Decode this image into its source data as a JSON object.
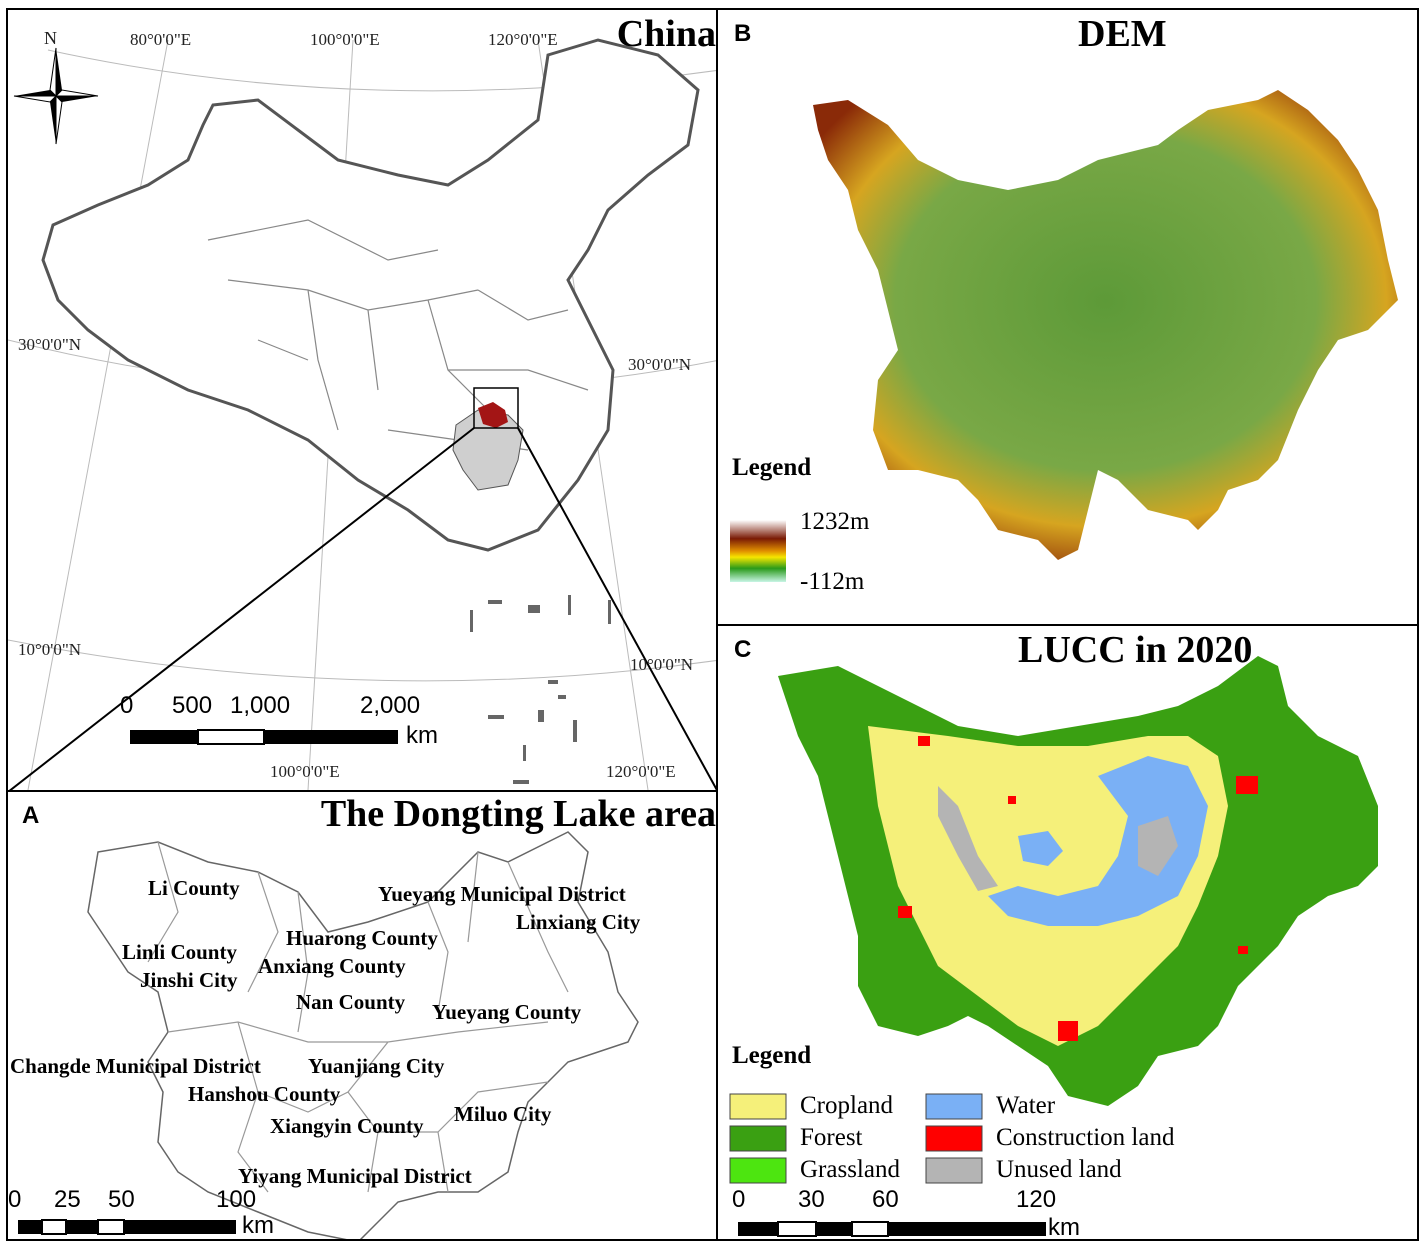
{
  "panel_china": {
    "title": "China",
    "north": "N",
    "coords": {
      "top_80E": "80°0'0\"E",
      "top_100E": "100°0'0\"E",
      "top_120E": "120°0'0\"E",
      "left_30N": "30°0'0\"N",
      "right_30N": "30°0'0\"N",
      "left_10N": "10°0'0\"N",
      "right_10N": "10°0'0\"N",
      "bottom_100E": "100°0'0\"E",
      "bottom_120E": "120°0'0\"E"
    },
    "scale": {
      "ticks": [
        "0",
        "500",
        "1,000",
        "2,000"
      ],
      "unit": "km"
    }
  },
  "panel_a": {
    "letter": "A",
    "title": "The Dongting Lake area",
    "counties": [
      "Li County",
      "Yueyang Municipal District",
      "Linxiang City",
      "Huarong County",
      "Linli County",
      "Anxiang County",
      "Jinshi City",
      "Nan County",
      "Yueyang County",
      "Changde Municipal District",
      "Yuanjiang City",
      "Hanshou County",
      "Miluo City",
      "Xiangyin County",
      "Yiyang Municipal District"
    ],
    "scale": {
      "ticks": [
        "0",
        "25",
        "50",
        "100"
      ],
      "unit": "km"
    }
  },
  "panel_b": {
    "letter": "B",
    "title": "DEM",
    "legend_title": "Legend",
    "elevation_max": "1232m",
    "elevation_min": "-112m"
  },
  "panel_c": {
    "letter": "C",
    "title": "LUCC in 2020",
    "legend_title": "Legend",
    "classes": [
      {
        "name": "Cropland",
        "color": "#f5f07a"
      },
      {
        "name": "Forest",
        "color": "#3aa012"
      },
      {
        "name": "Grassland",
        "color": "#4de510"
      },
      {
        "name": "Water",
        "color": "#7ab0f5"
      },
      {
        "name": "Construction land",
        "color": "#ff0000"
      },
      {
        "name": "Unused land",
        "color": "#b4b4b4"
      }
    ],
    "scale": {
      "ticks": [
        "0",
        "30",
        "60",
        "120"
      ],
      "unit": "km"
    }
  }
}
